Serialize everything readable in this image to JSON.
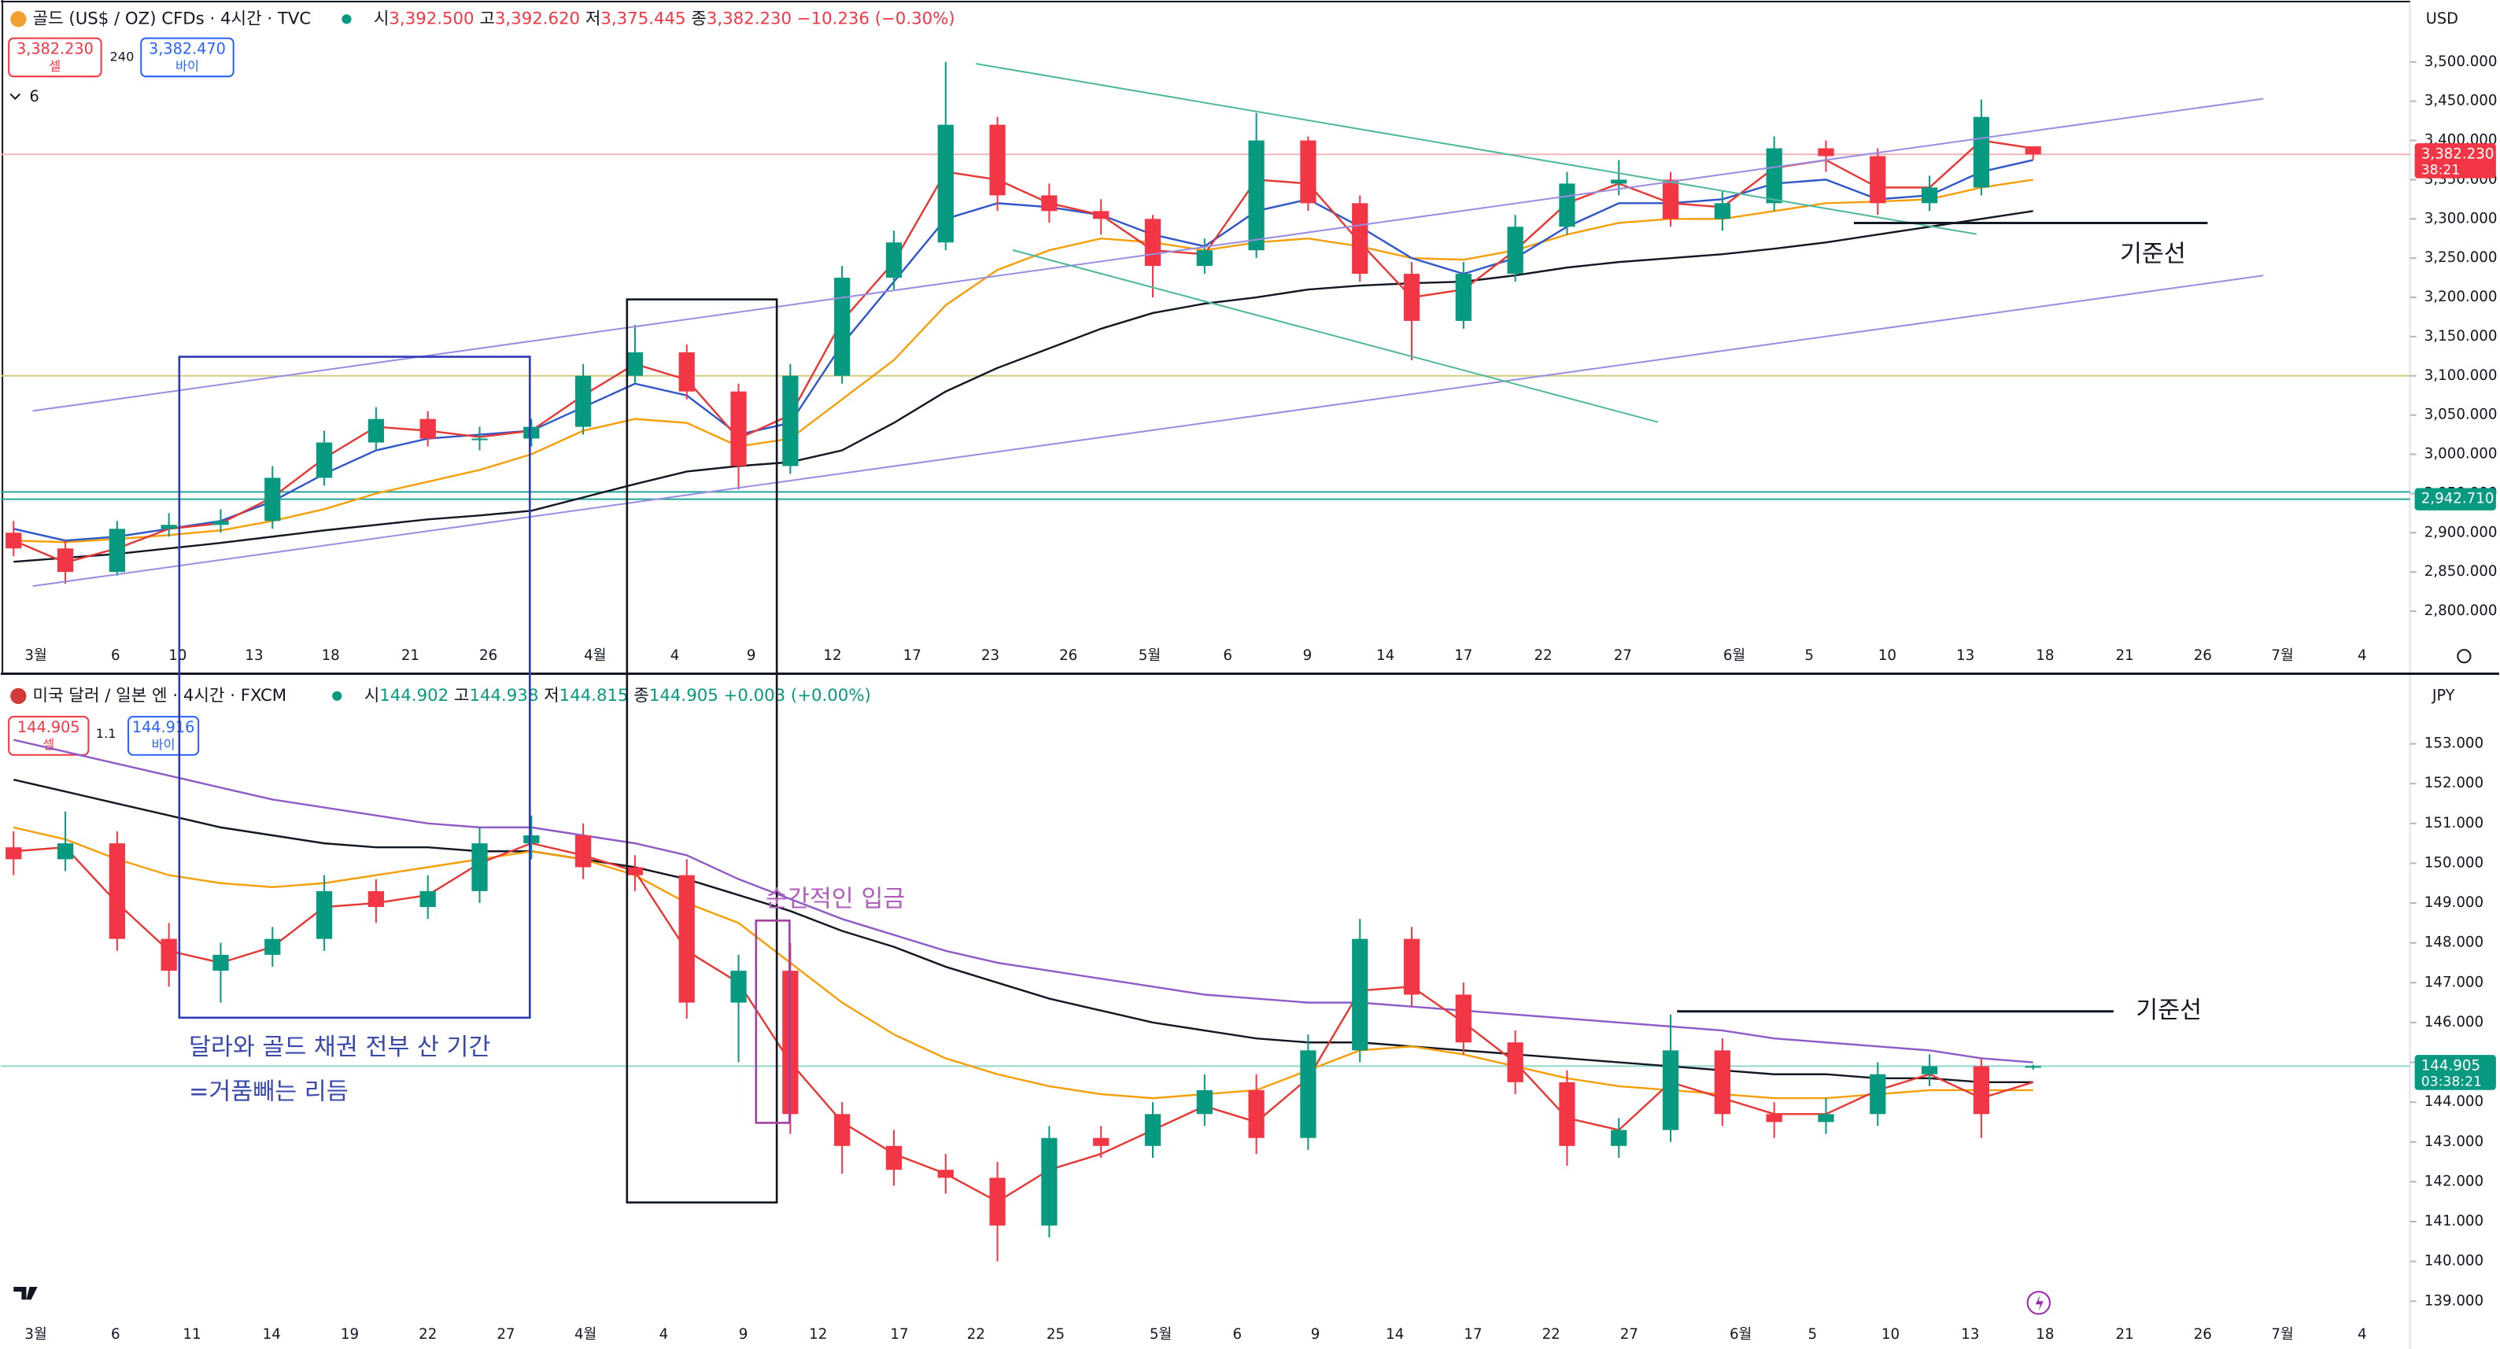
{
  "chart_data": [
    {
      "type": "candlestick",
      "title": "골드 (US$ / OZ) CFDs · 4시간 · TVC",
      "ohlc_labels": [
        "시",
        "3,392.500",
        "고",
        "3,392.620",
        "저",
        "3,375.445",
        "종",
        "3,382.230",
        "−10.236 (−0.30%)"
      ],
      "sell": {
        "price": "3,382.230",
        "label": "셀"
      },
      "spread": "240",
      "buy": {
        "price": "3,382.470",
        "label": "바이"
      },
      "indicators": "6",
      "currency": "USD",
      "up_color": "#089981",
      "down_color": "#f23645",
      "open": [
        2900,
        2880,
        2850,
        2905,
        2910,
        2915,
        2970,
        3015,
        3045,
        3020,
        3020,
        3035,
        3100,
        3130,
        3080,
        2985,
        3100,
        3225,
        3270,
        3420,
        3330,
        3310,
        3300,
        3240,
        3260,
        3400,
        3320,
        3230,
        3170,
        3230,
        3290,
        3345,
        3350,
        3300,
        3320,
        3390,
        3380,
        3320,
        3340,
        3392.5
      ],
      "high": [
        2915,
        2890,
        2915,
        2925,
        2930,
        2985,
        3030,
        3060,
        3055,
        3035,
        3045,
        3115,
        3165,
        3140,
        3090,
        3115,
        3240,
        3285,
        3500,
        3430,
        3345,
        3325,
        3305,
        3275,
        3435,
        3405,
        3330,
        3245,
        3245,
        3305,
        3360,
        3375,
        3360,
        3335,
        3405,
        3400,
        3390,
        3355,
        3452,
        3392.62
      ],
      "low": [
        2870,
        2835,
        2845,
        2895,
        2900,
        2905,
        2960,
        3005,
        3010,
        3005,
        3010,
        3025,
        3090,
        3070,
        2955,
        2975,
        3090,
        3210,
        3260,
        3310,
        3295,
        3280,
        3200,
        3230,
        3250,
        3310,
        3220,
        3120,
        3160,
        3220,
        3280,
        3330,
        3290,
        3285,
        3310,
        3360,
        3305,
        3310,
        3330,
        3375.445
      ],
      "close": [
        2880,
        2850,
        2905,
        2910,
        2915,
        2970,
        3015,
        3045,
        3020,
        3020,
        3035,
        3100,
        3130,
        3080,
        2985,
        3100,
        3225,
        3270,
        3420,
        3330,
        3310,
        3300,
        3240,
        3260,
        3400,
        3320,
        3230,
        3170,
        3230,
        3290,
        3345,
        3350,
        3300,
        3320,
        3390,
        3380,
        3320,
        3340,
        3430,
        3382.23
      ],
      "series": [
        {
          "color": "#131722",
          "values": [
            2863,
            2868,
            2873,
            2880,
            2887,
            2895,
            2903,
            2910,
            2917,
            2922,
            2928,
            2945,
            2962,
            2978,
            2985,
            2990,
            3005,
            3040,
            3080,
            3110,
            3135,
            3160,
            3180,
            3192,
            3200,
            3210,
            3215,
            3218,
            3220,
            3228,
            3238,
            3245,
            3250,
            3255,
            3262,
            3270,
            3280,
            3290,
            3300,
            3310
          ]
        },
        {
          "color": "#f59f0b",
          "values": [
            2890,
            2888,
            2892,
            2897,
            2903,
            2915,
            2930,
            2950,
            2965,
            2980,
            3000,
            3030,
            3045,
            3040,
            3010,
            3020,
            3070,
            3120,
            3190,
            3235,
            3260,
            3275,
            3270,
            3260,
            3270,
            3275,
            3265,
            3250,
            3248,
            3260,
            3280,
            3295,
            3300,
            3300,
            3310,
            3320,
            3322,
            3325,
            3340,
            3350
          ]
        },
        {
          "color": "#2f57c8",
          "values": [
            2905,
            2890,
            2895,
            2905,
            2915,
            2940,
            2975,
            3005,
            3020,
            3025,
            3030,
            3060,
            3090,
            3075,
            3025,
            3040,
            3140,
            3220,
            3300,
            3320,
            3315,
            3305,
            3280,
            3265,
            3310,
            3325,
            3290,
            3250,
            3230,
            3250,
            3290,
            3320,
            3320,
            3325,
            3345,
            3350,
            3325,
            3330,
            3360,
            3375
          ]
        },
        {
          "color": "#e53935",
          "values": [
            2890,
            2862,
            2880,
            2905,
            2912,
            2945,
            2995,
            3035,
            3030,
            3022,
            3030,
            3075,
            3115,
            3095,
            3020,
            3050,
            3170,
            3245,
            3360,
            3350,
            3320,
            3305,
            3260,
            3255,
            3350,
            3345,
            3270,
            3200,
            3210,
            3260,
            3320,
            3345,
            3320,
            3315,
            3365,
            3375,
            3340,
            3340,
            3400,
            3390
          ]
        }
      ],
      "levels": [
        {
          "value": 3382.23,
          "color": "#f6b3ba"
        },
        {
          "value": 3100,
          "color": "#cfcb83"
        },
        {
          "value": 2952,
          "color": "#26a69a"
        },
        {
          "value": 2942.71,
          "color": "#26a69a"
        }
      ],
      "ylim": [
        2767,
        3579
      ],
      "yticks": [
        {
          "value": 2800,
          "label": "2,800.000"
        },
        {
          "value": 2850,
          "label": "2,850.000"
        },
        {
          "value": 2900,
          "label": "2,900.000"
        },
        {
          "value": 2950,
          "label": "2,950.000"
        },
        {
          "value": 3000,
          "label": "3,000.000"
        },
        {
          "value": 3050,
          "label": "3,050.000"
        },
        {
          "value": 3100,
          "label": "3,100.000"
        },
        {
          "value": 3150,
          "label": "3,150.000"
        },
        {
          "value": 3200,
          "label": "3,200.000"
        },
        {
          "value": 3250,
          "label": "3,250.000"
        },
        {
          "value": 3300,
          "label": "3,300.000"
        },
        {
          "value": 3350,
          "label": "3,350.000"
        },
        {
          "value": 3400,
          "label": "3,400.000"
        },
        {
          "value": 3450,
          "label": "3,450.000"
        },
        {
          "value": 3500,
          "label": "3,500.000"
        }
      ],
      "price_labels": [
        {
          "value": 3382.23,
          "label": "3,382.230",
          "timer": "38:21",
          "color": "#f23645"
        },
        {
          "value": 2942.71,
          "label": "2,942.710",
          "color": "#089981"
        }
      ],
      "time_labels": [
        "3월",
        "6",
        "10",
        "13",
        "18",
        "21",
        "26",
        "4월",
        "4",
        "9",
        "12",
        "17",
        "23",
        "26",
        "5월",
        "6",
        "9",
        "14",
        "17",
        "22",
        "27",
        "6월",
        "5",
        "10",
        "13",
        "18",
        "21",
        "26",
        "7월",
        "4"
      ],
      "annotation": "기준선"
    },
    {
      "type": "candlestick",
      "title": "미국 달러 / 일본 엔 · 4시간 · FXCM",
      "ohlc_labels": [
        "시",
        "144.902",
        "고",
        "144.938",
        "저",
        "144.815",
        "종",
        "144.905",
        "+0.003 (+0.00%)"
      ],
      "sell": {
        "price": "144.905",
        "label": "셀"
      },
      "spread": "1.1",
      "buy": {
        "price": "144.916",
        "label": "바이"
      },
      "currency": "JPY",
      "up_color": "#089981",
      "down_color": "#f23645",
      "open": [
        150.4,
        150.1,
        150.5,
        148.1,
        147.3,
        147.7,
        148.1,
        149.3,
        148.9,
        149.3,
        150.5,
        150.7,
        149.9,
        149.7,
        146.5,
        147.3,
        143.7,
        142.9,
        142.3,
        142.1,
        140.9,
        143.1,
        142.9,
        143.7,
        144.3,
        143.1,
        145.3,
        148.1,
        146.7,
        145.5,
        144.5,
        142.9,
        143.3,
        145.3,
        143.7,
        143.5,
        143.7,
        144.7,
        144.9,
        144.902
      ],
      "high": [
        150.8,
        151.3,
        150.8,
        148.5,
        148.0,
        148.4,
        149.7,
        149.6,
        149.7,
        150.9,
        151.2,
        151.0,
        150.2,
        150.1,
        147.7,
        148.0,
        144.0,
        143.3,
        142.7,
        142.5,
        143.4,
        143.4,
        144.0,
        144.7,
        144.7,
        145.7,
        148.6,
        148.4,
        147.0,
        145.8,
        144.8,
        143.6,
        146.2,
        145.6,
        144.0,
        144.1,
        145.0,
        145.2,
        145.1,
        144.938
      ],
      "low": [
        149.7,
        149.8,
        147.8,
        146.9,
        146.5,
        147.4,
        147.8,
        148.5,
        148.6,
        149.0,
        150.1,
        149.6,
        149.3,
        146.1,
        145.0,
        143.2,
        142.2,
        141.9,
        141.7,
        140.0,
        140.6,
        142.6,
        142.6,
        143.4,
        142.7,
        142.8,
        145.0,
        146.4,
        145.2,
        144.2,
        142.4,
        142.6,
        143.0,
        143.4,
        143.1,
        143.2,
        143.4,
        144.4,
        143.1,
        144.815
      ],
      "close": [
        150.1,
        150.5,
        148.1,
        147.3,
        147.7,
        148.1,
        149.3,
        148.9,
        149.3,
        150.5,
        150.7,
        149.9,
        149.7,
        146.5,
        147.3,
        143.7,
        142.9,
        142.3,
        142.1,
        140.9,
        143.1,
        142.9,
        143.7,
        144.3,
        143.1,
        145.3,
        148.1,
        146.7,
        145.5,
        144.5,
        142.9,
        143.3,
        145.3,
        143.7,
        143.5,
        143.7,
        144.7,
        144.9,
        143.7,
        144.905
      ],
      "series": [
        {
          "color": "#8e5cc6",
          "values": [
            153.1,
            152.8,
            152.5,
            152.2,
            151.9,
            151.6,
            151.4,
            151.2,
            151.0,
            150.9,
            150.9,
            150.7,
            150.5,
            150.2,
            149.6,
            149.1,
            148.6,
            148.2,
            147.8,
            147.5,
            147.3,
            147.1,
            146.9,
            146.7,
            146.6,
            146.5,
            146.5,
            146.4,
            146.3,
            146.2,
            146.1,
            146.0,
            145.9,
            145.8,
            145.6,
            145.5,
            145.4,
            145.3,
            145.1,
            145.0
          ]
        },
        {
          "color": "#131722",
          "values": [
            152.1,
            151.8,
            151.5,
            151.2,
            150.9,
            150.7,
            150.5,
            150.4,
            150.4,
            150.3,
            150.3,
            150.1,
            149.9,
            149.6,
            149.2,
            148.8,
            148.3,
            147.9,
            147.4,
            147.0,
            146.6,
            146.3,
            146.0,
            145.8,
            145.6,
            145.5,
            145.5,
            145.4,
            145.3,
            145.2,
            145.1,
            145.0,
            144.9,
            144.8,
            144.7,
            144.7,
            144.6,
            144.6,
            144.5,
            144.5
          ]
        },
        {
          "color": "#f59f0b",
          "values": [
            150.9,
            150.6,
            150.1,
            149.7,
            149.5,
            149.4,
            149.5,
            149.7,
            149.9,
            150.1,
            150.3,
            150.1,
            149.7,
            149.0,
            148.5,
            147.5,
            146.5,
            145.7,
            145.1,
            144.7,
            144.4,
            144.2,
            144.1,
            144.2,
            144.3,
            144.8,
            145.3,
            145.4,
            145.2,
            144.9,
            144.6,
            144.4,
            144.3,
            144.2,
            144.1,
            144.1,
            144.2,
            144.3,
            144.3,
            144.3
          ]
        },
        {
          "color": "#e53935",
          "values": [
            150.3,
            150.4,
            149.0,
            147.8,
            147.5,
            147.9,
            148.9,
            149.0,
            149.2,
            150.0,
            150.5,
            150.2,
            149.8,
            147.8,
            147.0,
            145.0,
            143.5,
            142.7,
            142.2,
            141.5,
            142.3,
            142.7,
            143.3,
            143.9,
            143.5,
            144.6,
            146.8,
            146.9,
            146.0,
            145.0,
            143.6,
            143.3,
            144.5,
            144.1,
            143.7,
            143.7,
            144.3,
            144.7,
            144.1,
            144.5
          ]
        }
      ],
      "levels": [
        {
          "value": 144.905,
          "color": "#8fd6cc"
        }
      ],
      "ylim": [
        138.8,
        153.76
      ],
      "yticks": [
        {
          "value": 139,
          "label": "139.000"
        },
        {
          "value": 140,
          "label": "140.000"
        },
        {
          "value": 141,
          "label": "141.000"
        },
        {
          "value": 142,
          "label": "142.000"
        },
        {
          "value": 143,
          "label": "143.000"
        },
        {
          "value": 144,
          "label": "144.000"
        },
        {
          "value": 145,
          "label": "145.000"
        },
        {
          "value": 146,
          "label": "146.000"
        },
        {
          "value": 147,
          "label": "147.000"
        },
        {
          "value": 148,
          "label": "148.000"
        },
        {
          "value": 149,
          "label": "149.000"
        },
        {
          "value": 150,
          "label": "150.000"
        },
        {
          "value": 151,
          "label": "151.000"
        },
        {
          "value": 152,
          "label": "152.000"
        },
        {
          "value": 153,
          "label": "153.000"
        }
      ],
      "price_labels": [
        {
          "value": 144.905,
          "label": "144.905",
          "timer": "03:38:21",
          "color": "#089981"
        }
      ],
      "time_labels": [
        "3월",
        "6",
        "11",
        "14",
        "19",
        "22",
        "27",
        "4월",
        "4",
        "9",
        "12",
        "17",
        "22",
        "25",
        "5월",
        "6",
        "9",
        "14",
        "17",
        "22",
        "27",
        "6월",
        "5",
        "10",
        "13",
        "18",
        "21",
        "26",
        "7월",
        "4"
      ],
      "annotation": "기준선",
      "notes": [
        "달라와 골드 채권 전부 산 기간",
        "=거품빼는 리듬",
        "순간적인 입금"
      ]
    }
  ]
}
